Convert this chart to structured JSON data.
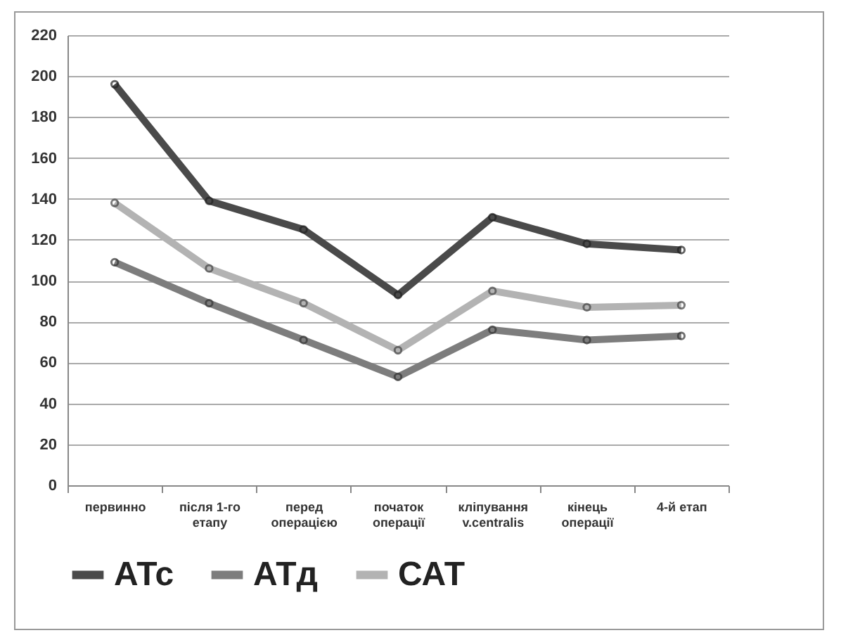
{
  "chart_data": {
    "type": "line",
    "categories": [
      "первинно",
      "після 1-го етапу",
      "перед операцією",
      "початок операції",
      "кліпування v.centralis",
      "кінець операції",
      "4-й етап"
    ],
    "series": [
      {
        "name": "АТс",
        "color": "#4a4a4a",
        "values": [
          196,
          139,
          125,
          93,
          131,
          118,
          115
        ]
      },
      {
        "name": "АТд",
        "color": "#7d7d7d",
        "values": [
          109,
          89,
          71,
          53,
          76,
          71,
          73
        ]
      },
      {
        "name": "САТ",
        "color": "#b3b3b3",
        "values": [
          138,
          106,
          89,
          66,
          95,
          87,
          88
        ]
      }
    ],
    "ylim": [
      0,
      220
    ],
    "yticks": [
      0,
      20,
      40,
      60,
      80,
      100,
      120,
      140,
      160,
      180,
      200,
      220
    ],
    "grid": "y",
    "legend": "bottom",
    "marker": "circle",
    "line_style": "solid"
  }
}
